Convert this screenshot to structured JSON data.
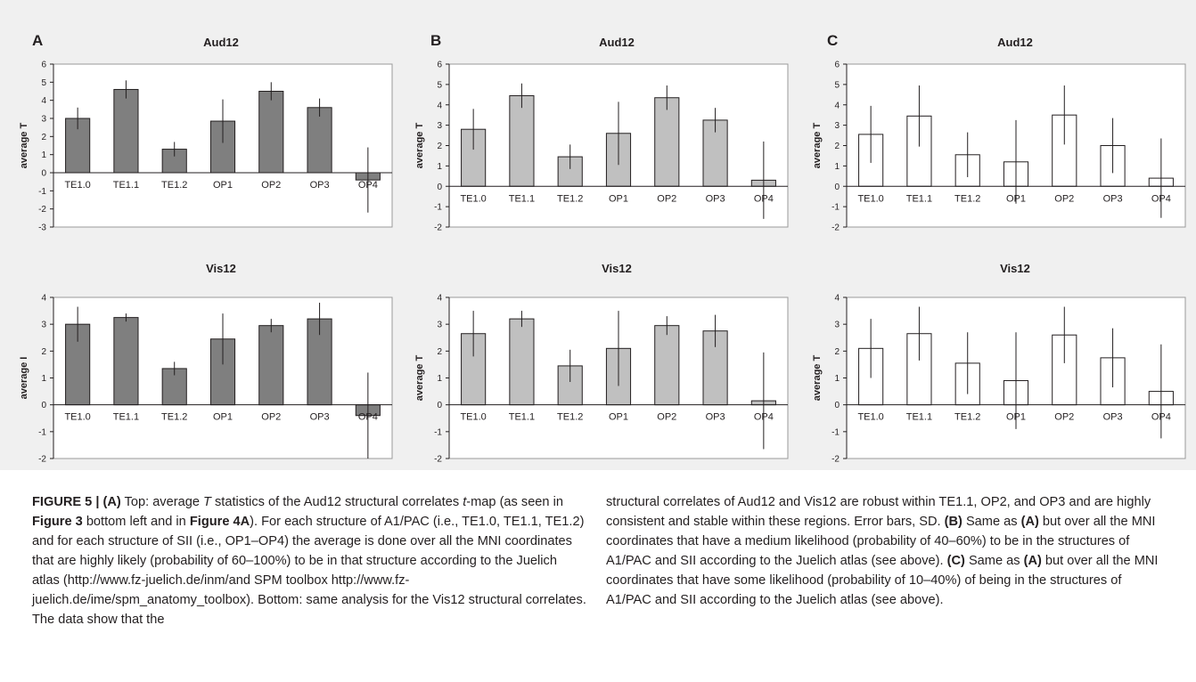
{
  "panels": [
    {
      "letter": "A"
    },
    {
      "letter": "B"
    },
    {
      "letter": "C"
    }
  ],
  "chart_data": [
    {
      "panel": "A",
      "type": "bar",
      "title": "Aud12",
      "ylabel": "average T",
      "categories": [
        "TE1.0",
        "TE1.1",
        "TE1.2",
        "OP1",
        "OP2",
        "OP3",
        "OP4"
      ],
      "values": [
        3.0,
        4.6,
        1.3,
        2.85,
        4.5,
        3.6,
        -0.4
      ],
      "errors": [
        0.6,
        0.5,
        0.4,
        1.2,
        0.5,
        0.5,
        1.8
      ],
      "ylim": [
        -3,
        6
      ],
      "yticks": [
        -3,
        -2,
        -1,
        0,
        1,
        2,
        3,
        4,
        5,
        6
      ],
      "bar_color": "#7f7f7f",
      "grid": false
    },
    {
      "panel": "B",
      "type": "bar",
      "title": "Aud12",
      "ylabel": "average T",
      "categories": [
        "TE1.0",
        "TE1.1",
        "TE1.2",
        "OP1",
        "OP2",
        "OP3",
        "OP4"
      ],
      "values": [
        2.8,
        4.45,
        1.45,
        2.6,
        4.35,
        3.25,
        0.3
      ],
      "errors": [
        1.0,
        0.6,
        0.6,
        1.55,
        0.6,
        0.6,
        1.9
      ],
      "ylim": [
        -2,
        6
      ],
      "yticks": [
        -2,
        -1,
        0,
        1,
        2,
        3,
        4,
        5,
        6
      ],
      "bar_color": "#c0c0c0",
      "grid": false
    },
    {
      "panel": "C",
      "type": "bar",
      "title": "Aud12",
      "ylabel": "average T",
      "categories": [
        "TE1.0",
        "TE1.1",
        "TE1.2",
        "OP1",
        "OP2",
        "OP3",
        "OP4"
      ],
      "values": [
        2.55,
        3.45,
        1.55,
        1.2,
        3.5,
        2.0,
        0.4
      ],
      "errors": [
        1.4,
        1.5,
        1.1,
        2.05,
        1.45,
        1.35,
        1.95
      ],
      "ylim": [
        -2,
        6
      ],
      "yticks": [
        -2,
        -1,
        0,
        1,
        2,
        3,
        4,
        5,
        6
      ],
      "bar_color": "#ffffff",
      "grid": false
    },
    {
      "panel": "A",
      "type": "bar",
      "title": "Vis12",
      "ylabel": "average I",
      "categories": [
        "TE1.0",
        "TE1.1",
        "TE1.2",
        "OP1",
        "OP2",
        "OP3",
        "OP4"
      ],
      "values": [
        3.0,
        3.25,
        1.35,
        2.45,
        2.95,
        3.2,
        -0.4
      ],
      "errors": [
        0.65,
        0.15,
        0.25,
        0.95,
        0.25,
        0.6,
        1.6
      ],
      "ylim": [
        -2,
        4
      ],
      "yticks": [
        -2,
        -1,
        0,
        1,
        2,
        3,
        4
      ],
      "bar_color": "#7f7f7f",
      "grid": false
    },
    {
      "panel": "B",
      "type": "bar",
      "title": "Vis12",
      "ylabel": "average T",
      "categories": [
        "TE1.0",
        "TE1.1",
        "TE1.2",
        "OP1",
        "OP2",
        "OP3",
        "OP4"
      ],
      "values": [
        2.65,
        3.2,
        1.45,
        2.1,
        2.95,
        2.75,
        0.15
      ],
      "errors": [
        0.85,
        0.3,
        0.6,
        1.4,
        0.35,
        0.6,
        1.8
      ],
      "ylim": [
        -2,
        4
      ],
      "yticks": [
        -2,
        -1,
        0,
        1,
        2,
        3,
        4
      ],
      "bar_color": "#c0c0c0",
      "grid": false
    },
    {
      "panel": "C",
      "type": "bar",
      "title": "Vis12",
      "ylabel": "average T",
      "categories": [
        "TE1.0",
        "TE1.1",
        "TE1.2",
        "OP1",
        "OP2",
        "OP3",
        "OP4"
      ],
      "values": [
        2.1,
        2.65,
        1.55,
        0.9,
        2.6,
        1.75,
        0.5
      ],
      "errors": [
        1.1,
        1.0,
        1.15,
        1.8,
        1.05,
        1.1,
        1.75
      ],
      "ylim": [
        -2,
        4
      ],
      "yticks": [
        -2,
        -1,
        0,
        1,
        2,
        3,
        4
      ],
      "bar_color": "#ffffff",
      "grid": false
    }
  ],
  "caption": {
    "fig_label": "FIGURE 5 | ",
    "a_label": "(A)",
    "t1": " Top: average ",
    "t_italic": "T",
    "t2": " statistics of the Aud12 structural correlates ",
    "t_italic2": "t",
    "t3": "-map (as seen in ",
    "ref1": "Figure 3",
    "t4": " bottom left and in ",
    "ref2": "Figure 4A",
    "t5": "). For each structure of A1/PAC (i.e., TE1.0, TE1.1, TE1.2) and for each structure of SII (i.e., OP1–OP4) the average is done over all the MNI coordinates that are highly likely (probability of 60–100%) to be in that structure according to the Juelich atlas (http://www.fz-juelich.de/inm/and SPM toolbox http://www.fz-juelich.de/ime/spm_anatomy_toolbox). Bottom: same analysis for the Vis12 structural correlates. The data show that the",
    "r1": "structural correlates of Aud12 and Vis12 are robust within TE1.1, OP2, and OP3 and are highly consistent and stable within these regions. Error bars, SD. ",
    "b_label": "(B)",
    "r2": " Same as ",
    "a_ref": "(A)",
    "r3": " but over all the MNI coordinates that have a medium likelihood (probability of 40–60%) to be in the structures of A1/PAC and SII according to the Juelich atlas (see above). ",
    "c_label": "(C)",
    "r4": " Same as ",
    "a_ref2": "(A)",
    "r5": " but over all the MNI coordinates that have some likelihood (probability of 10–40%) of being in the structures of A1/PAC and SII according to the Juelich atlas (see above)."
  }
}
